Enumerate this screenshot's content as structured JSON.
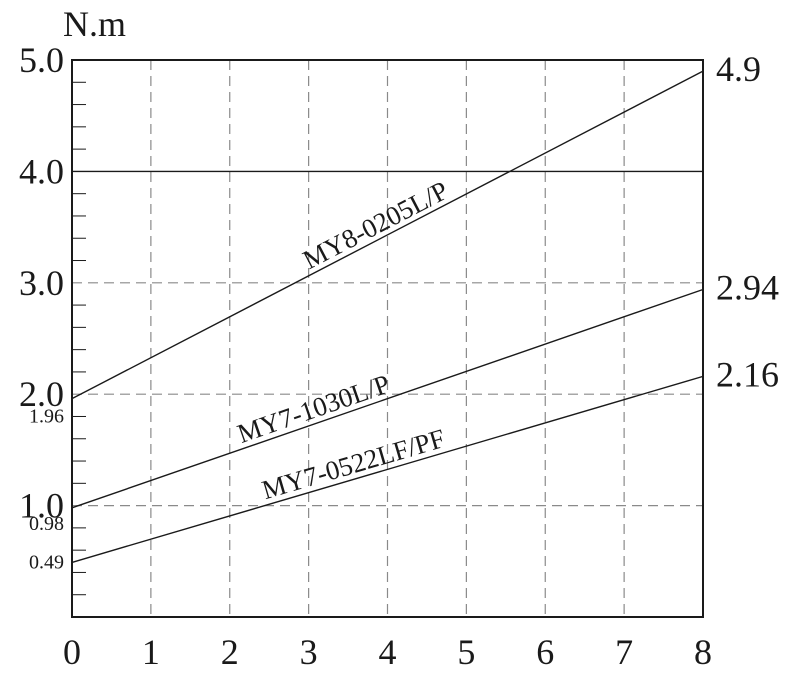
{
  "chart_data": {
    "type": "line",
    "ylabel": "N.m",
    "xlabel": "",
    "xlim": [
      0,
      8
    ],
    "ylim": [
      0,
      5
    ],
    "grid": true,
    "x_ticks": [
      "0",
      "1",
      "2",
      "3",
      "4",
      "5",
      "6",
      "7",
      "8"
    ],
    "y_ticks": [
      {
        "value": 1,
        "label": "1.0"
      },
      {
        "value": 2,
        "label": "2.0"
      },
      {
        "value": 3,
        "label": "3.0"
      },
      {
        "value": 4,
        "label": "4.0"
      },
      {
        "value": 5,
        "label": "5.0"
      }
    ],
    "y_minor_step": 0.2,
    "start_labels": [
      {
        "value": 1.96,
        "label": "1.96"
      },
      {
        "value": 0.98,
        "label": "0.98"
      },
      {
        "value": 0.49,
        "label": "0.49"
      }
    ],
    "end_labels": [
      {
        "value": 4.9,
        "label": "4.9"
      },
      {
        "value": 2.94,
        "label": "2.94"
      },
      {
        "value": 2.16,
        "label": "2.16"
      }
    ],
    "series": [
      {
        "name": "MY8-0205L/P",
        "x": [
          0,
          8
        ],
        "values": [
          1.96,
          4.9
        ],
        "label_x": 3.9
      },
      {
        "name": "MY7-1030L/P",
        "x": [
          0,
          8
        ],
        "values": [
          0.98,
          2.94
        ],
        "label_x": 3.1
      },
      {
        "name": "MY7-0522LF/PF",
        "x": [
          0,
          8
        ],
        "values": [
          0.49,
          2.16
        ],
        "label_x": 3.6
      }
    ],
    "colors": {
      "line": "#1a1a1a",
      "grid": "#8a8a8a",
      "axis": "#1a1a1a"
    }
  }
}
